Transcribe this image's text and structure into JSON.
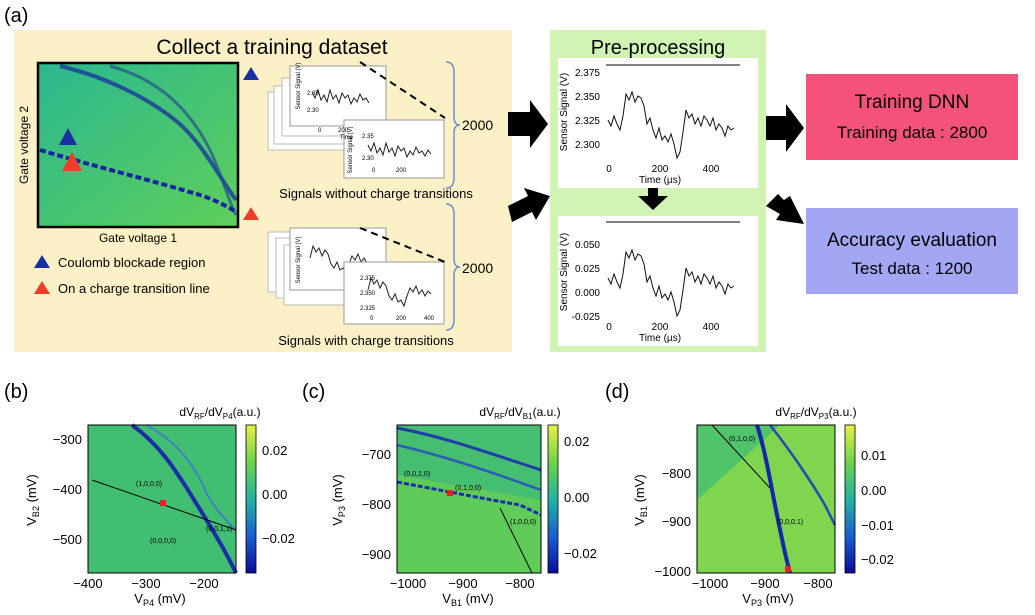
{
  "panels": {
    "a": "(a)",
    "b": "(b)",
    "c": "(c)",
    "d": "(d)"
  },
  "collect": {
    "title": "Collect a training dataset",
    "xlabel": "Gate voltage 1",
    "ylabel": "Gate voltage 2",
    "legend_blue": "Coulomb blockade region",
    "legend_red": "On a charge transition line",
    "count_without": "2000",
    "count_with": "2000",
    "caption_without": "Signals without charge transitions",
    "caption_with": "Signals with charge transitions",
    "mini_ylabel": "Sensor Signal (V)",
    "mini_xlabel": "Time",
    "mini_ticks_top": [
      "2.35",
      "2.30",
      "0",
      "200",
      "2.35",
      "2.30",
      "0",
      "200"
    ],
    "mini_ticks_bot": [
      "2.375",
      "2.350",
      "2.325",
      "0",
      "200",
      "400"
    ]
  },
  "preprocess": {
    "title": "Pre-processing",
    "top": {
      "ylabel": "Sensor Signal (V)",
      "xlabel": "Time (µs)",
      "yticks": [
        "2.375",
        "2.350",
        "2.325",
        "2.300"
      ],
      "xticks": [
        "0",
        "200",
        "400"
      ]
    },
    "bottom": {
      "ylabel": "Sensor Signal (V)",
      "xlabel": "Time (µs)",
      "yticks": [
        "0.050",
        "0.025",
        "0.000",
        "-0.025"
      ],
      "xticks": [
        "0",
        "200",
        "400"
      ]
    }
  },
  "training": {
    "line1": "Training DNN",
    "line2": "Training data : 2800",
    "color": "#f5527a"
  },
  "accuracy": {
    "line1": "Accuracy evaluation",
    "line2": "Test data : 1200",
    "color": "#a3a6f3"
  },
  "plots": [
    {
      "id": "b",
      "cbar_title": "dV",
      "cbar_sub1": "RF",
      "cbar_mid": "/dV",
      "cbar_sub2": "P4",
      "cbar_end": "(a.u.)",
      "xlabel": "V",
      "xsub": "P4",
      "xunit": " (mV)",
      "ylabel": "V",
      "ysub": "B2",
      "yunit": " (mV)",
      "xticks": [
        "−400",
        "−300",
        "−200"
      ],
      "yticks": [
        "−300",
        "−400",
        "−500"
      ],
      "cbar_ticks": [
        "0.02",
        "0.00",
        "−0.02"
      ],
      "annotations": [
        "(1,0,0,0)",
        "(0,0,1,1)",
        "(0,0,0,0)"
      ]
    },
    {
      "id": "c",
      "cbar_title": "dV",
      "cbar_sub1": "RF",
      "cbar_mid": "/dV",
      "cbar_sub2": "B1",
      "cbar_end": "(a.u.)",
      "xlabel": "V",
      "xsub": "B1",
      "xunit": " (mV)",
      "ylabel": "V",
      "ysub": "P3",
      "yunit": " (mV)",
      "xticks": [
        "−1000",
        "−900",
        "−800"
      ],
      "yticks": [
        "−700",
        "−800",
        "−900"
      ],
      "cbar_ticks": [
        "0.02",
        "0.00",
        "−0.02"
      ],
      "annotations": [
        "(0,0,1,0)",
        "(0,1,0,0)",
        "(1,0,0,0)"
      ]
    },
    {
      "id": "d",
      "cbar_title": "dV",
      "cbar_sub1": "RF",
      "cbar_mid": "/dV",
      "cbar_sub2": "P3",
      "cbar_end": "(a.u.)",
      "xlabel": "V",
      "xsub": "P3",
      "xunit": " (mV)",
      "ylabel": "V",
      "ysub": "B1",
      "yunit": " (mV)",
      "xticks": [
        "−1000",
        "−900",
        "−800"
      ],
      "yticks": [
        "−800",
        "−900",
        "−1000"
      ],
      "cbar_ticks": [
        "0.01",
        "0.00",
        "−0.01",
        "−0.02"
      ],
      "annotations": [
        "(0,1,0,0)",
        "(0,0,0,1)"
      ]
    }
  ]
}
